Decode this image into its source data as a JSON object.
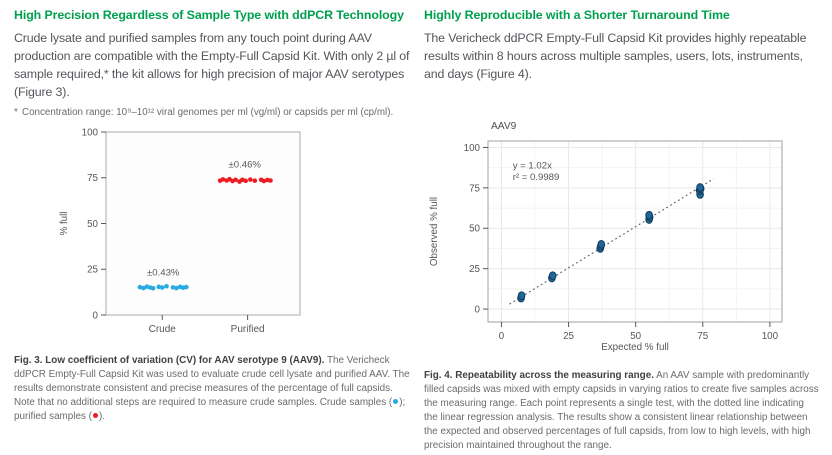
{
  "colors": {
    "heading_green": "#00a04e",
    "body_text": "#54565b",
    "caption_text": "#696b6e",
    "caption_bold": "#404145",
    "crude_blue": "#29abe2",
    "purified_red": "#ed1c24",
    "fig4_point_fill": "#1d6898",
    "fig4_point_stroke": "#123a5c"
  },
  "left_column": {
    "heading": "High Precision Regardless of Sample Type with ddPCR Technology",
    "body": "Crude lysate and purified samples from any touch point during AAV production are compatible with the Empty-Full Capsid Kit. With only 2 µl of sample required,* the kit allows for high precision of major AAV serotypes (Figure 3).",
    "footnote_marker": "*",
    "footnote": "Concentration range: 10⁹–10¹² viral genomes per ml (vg/ml) or capsids per ml (cp/ml).",
    "caption": {
      "bold": "Fig. 3. Low coefficient of variation (CV) for AAV serotype 9 (AAV9).",
      "text_before_blue_dot": " The Vericheck ddPCR Empty-Full Capsid Kit was used to evaluate crude cell lysate and purified AAV. The results demonstrate consistent and precise measures of the percentage of full capsids. Note that no additional steps are required to measure crude samples. Crude samples (",
      "between_dots": "); purified samples (",
      "after_red_dot": ")."
    }
  },
  "right_column": {
    "heading": "Highly Reproducible with a Shorter Turnaround Time",
    "body": "The Vericheck ddPCR Empty-Full Capsid Kit provides highly repeatable results within 8 hours across multiple samples, users, lots, instruments, and days (Figure 4).",
    "caption": {
      "bold": "Fig. 4. Repeatability across the measuring range.",
      "text": " An AAV sample with predominantly filled capsids was mixed with empty capsids in varying ratios to create five samples across the measuring range. Each point represents a single test, with the dotted line indicating the linear regression analysis. The results show a consistent linear relationship between the expected and observed percentages of full capsids, from low to high levels, with high precision maintained throughout the range."
    }
  },
  "chart_data": [
    {
      "id": "fig3",
      "type": "scatter",
      "title": "",
      "ylabel": "% full",
      "ylim": [
        0,
        100
      ],
      "yticks": [
        0,
        25,
        50,
        75,
        100
      ],
      "categories": [
        "Crude",
        "Purified"
      ],
      "category_positions": [
        0.29,
        0.73
      ],
      "grid": false,
      "series": [
        {
          "name": "Crude samples",
          "color": "#29abe2",
          "annotation": "±0.43%",
          "annotation_pos": [
            0.295,
            21.5
          ],
          "points": [
            [
              0.175,
              15.2
            ],
            [
              0.193,
              14.7
            ],
            [
              0.211,
              15.5
            ],
            [
              0.228,
              15.0
            ],
            [
              0.243,
              14.6
            ],
            [
              0.272,
              15.4
            ],
            [
              0.29,
              15.0
            ],
            [
              0.312,
              15.7
            ],
            [
              0.345,
              15.1
            ],
            [
              0.363,
              14.7
            ],
            [
              0.382,
              15.4
            ],
            [
              0.398,
              14.9
            ],
            [
              0.414,
              15.3
            ]
          ]
        },
        {
          "name": "Purified samples",
          "color": "#ed1c24",
          "annotation": "±0.46%",
          "annotation_pos": [
            0.715,
            80.5
          ],
          "points": [
            [
              0.588,
              73.4
            ],
            [
              0.603,
              74.1
            ],
            [
              0.622,
              73.5
            ],
            [
              0.637,
              74.2
            ],
            [
              0.652,
              73.2
            ],
            [
              0.668,
              73.9
            ],
            [
              0.688,
              72.9
            ],
            [
              0.703,
              73.9
            ],
            [
              0.72,
              73.3
            ],
            [
              0.744,
              74.0
            ],
            [
              0.767,
              73.4
            ],
            [
              0.8,
              73.9
            ],
            [
              0.814,
              73.2
            ],
            [
              0.832,
              73.8
            ],
            [
              0.848,
              73.5
            ]
          ]
        }
      ]
    },
    {
      "id": "fig4",
      "type": "scatter",
      "title": "AAV9",
      "xlabel": "Expected % full",
      "ylabel": "Observed % full",
      "xlim": [
        -5,
        104.5
      ],
      "ylim": [
        -8,
        104
      ],
      "xticks": [
        0,
        25,
        50,
        75,
        100
      ],
      "yticks": [
        0,
        25,
        50,
        75,
        100
      ],
      "grid": "major+minor",
      "annotation": [
        "y = 1.02x",
        "r² = 0.9989"
      ],
      "annotation_pos": [
        4.2,
        87
      ],
      "point_color": "#1d6898",
      "point_stroke": "#123a5c",
      "trendline": {
        "style": "dotted",
        "slope": 1.02,
        "x_start": 3,
        "x_end": 79
      },
      "points": [
        [
          7.3,
          6.8
        ],
        [
          7.5,
          8.3
        ],
        [
          18.8,
          19.2
        ],
        [
          19.1,
          20.7
        ],
        [
          36.8,
          37.5
        ],
        [
          37.0,
          38.9
        ],
        [
          37.2,
          40.1
        ],
        [
          55.0,
          55.4
        ],
        [
          55.2,
          56.9
        ],
        [
          55.0,
          58.1
        ],
        [
          74.0,
          70.9
        ],
        [
          73.8,
          73.4
        ],
        [
          74.2,
          74.4
        ],
        [
          74.0,
          75.3
        ]
      ]
    }
  ]
}
